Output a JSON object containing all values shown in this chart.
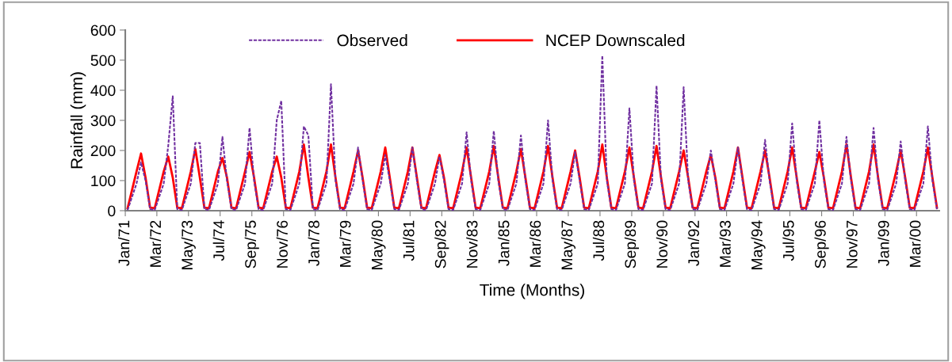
{
  "chart_data": {
    "type": "line",
    "xlabel": "Time (Months)",
    "ylabel": "Rainfall (mm)",
    "xlim": [
      "1971-01",
      "2001-01"
    ],
    "ylim": [
      0,
      600
    ],
    "yticks": [
      0,
      100,
      200,
      300,
      400,
      500,
      600
    ],
    "xticks": [
      {
        "value": "1971-01",
        "label": "Jan/71"
      },
      {
        "value": "1972-03",
        "label": "Mar/72"
      },
      {
        "value": "1973-05",
        "label": "May/73"
      },
      {
        "value": "1974-07",
        "label": "Jul/74"
      },
      {
        "value": "1975-09",
        "label": "Sep/75"
      },
      {
        "value": "1976-11",
        "label": "Nov/76"
      },
      {
        "value": "1978-01",
        "label": "Jan/78"
      },
      {
        "value": "1979-03",
        "label": "Mar/79"
      },
      {
        "value": "1980-05",
        "label": "May/80"
      },
      {
        "value": "1981-07",
        "label": "Jul/81"
      },
      {
        "value": "1982-09",
        "label": "Sep/82"
      },
      {
        "value": "1983-11",
        "label": "Nov/83"
      },
      {
        "value": "1985-01",
        "label": "Jan/85"
      },
      {
        "value": "1986-03",
        "label": "Mar/86"
      },
      {
        "value": "1987-05",
        "label": "May/87"
      },
      {
        "value": "1988-07",
        "label": "Jul/88"
      },
      {
        "value": "1989-09",
        "label": "Sep/89"
      },
      {
        "value": "1990-11",
        "label": "Nov/90"
      },
      {
        "value": "1992-01",
        "label": "Jan/92"
      },
      {
        "value": "1993-03",
        "label": "Mar/93"
      },
      {
        "value": "1994-05",
        "label": "May/94"
      },
      {
        "value": "1995-07",
        "label": "Jul/95"
      },
      {
        "value": "1996-09",
        "label": "Sep/96"
      },
      {
        "value": "1997-11",
        "label": "Nov/97"
      },
      {
        "value": "1999-01",
        "label": "Jan/99"
      },
      {
        "value": "2000-03",
        "label": "Mar/00"
      }
    ],
    "grid": false,
    "legend": "top",
    "marker": "none",
    "series": [
      {
        "name": "Observed",
        "color": "#7030a0",
        "line_style": "dashed",
        "x": [
          "1971-02",
          "1971-06",
          "1971-08",
          "1971-10",
          "1971-12",
          "1972-02",
          "1972-06",
          "1972-08",
          "1972-10",
          "1972-12",
          "1973-02",
          "1973-06",
          "1973-08",
          "1973-10",
          "1973-12",
          "1974-02",
          "1974-06",
          "1974-08",
          "1974-10",
          "1974-12",
          "1975-02",
          "1975-06",
          "1975-08",
          "1975-10",
          "1975-12",
          "1976-02",
          "1976-06",
          "1976-08",
          "1976-10",
          "1976-12",
          "1977-02",
          "1977-06",
          "1977-08",
          "1977-10",
          "1977-12",
          "1978-02",
          "1978-06",
          "1978-08",
          "1978-10",
          "1978-12",
          "1979-02",
          "1979-06",
          "1979-08",
          "1979-10",
          "1979-12",
          "1980-02",
          "1980-06",
          "1980-08",
          "1980-10",
          "1980-12",
          "1981-02",
          "1981-06",
          "1981-08",
          "1981-10",
          "1981-12",
          "1982-02",
          "1982-06",
          "1982-08",
          "1982-10",
          "1982-12",
          "1983-02",
          "1983-06",
          "1983-08",
          "1983-10",
          "1983-12",
          "1984-02",
          "1984-06",
          "1984-08",
          "1984-10",
          "1984-12",
          "1985-02",
          "1985-06",
          "1985-08",
          "1985-10",
          "1985-12",
          "1986-02",
          "1986-06",
          "1986-08",
          "1986-10",
          "1986-12",
          "1987-02",
          "1987-06",
          "1987-08",
          "1987-10",
          "1987-12",
          "1988-02",
          "1988-06",
          "1988-08",
          "1988-10",
          "1988-12",
          "1989-02",
          "1989-06",
          "1989-08",
          "1989-10",
          "1989-12",
          "1990-02",
          "1990-06",
          "1990-08",
          "1990-10",
          "1990-12",
          "1991-02",
          "1991-06",
          "1991-08",
          "1991-10",
          "1991-12",
          "1992-02",
          "1992-06",
          "1992-08",
          "1992-10",
          "1992-12",
          "1993-02",
          "1993-06",
          "1993-08",
          "1993-10",
          "1993-12",
          "1994-02",
          "1994-06",
          "1994-08",
          "1994-10",
          "1994-12",
          "1995-02",
          "1995-06",
          "1995-08",
          "1995-10",
          "1995-12",
          "1996-02",
          "1996-06",
          "1996-08",
          "1996-10",
          "1996-12",
          "1997-02",
          "1997-06",
          "1997-08",
          "1997-10",
          "1997-12",
          "1998-02",
          "1998-06",
          "1998-08",
          "1998-10",
          "1998-12",
          "1999-02",
          "1999-06",
          "1999-08",
          "1999-10",
          "1999-12",
          "2000-02",
          "2000-06",
          "2000-08",
          "2000-10",
          "2000-12"
        ],
        "values": [
          2,
          90,
          160,
          100,
          5,
          2,
          90,
          215,
          380,
          5,
          2,
          90,
          225,
          225,
          5,
          2,
          90,
          245,
          100,
          5,
          2,
          90,
          275,
          100,
          5,
          2,
          90,
          300,
          365,
          5,
          2,
          90,
          280,
          250,
          5,
          2,
          90,
          420,
          100,
          5,
          2,
          90,
          210,
          100,
          5,
          2,
          90,
          185,
          100,
          5,
          2,
          90,
          210,
          100,
          5,
          2,
          90,
          180,
          100,
          5,
          2,
          90,
          260,
          100,
          5,
          2,
          90,
          265,
          100,
          5,
          2,
          90,
          250,
          100,
          5,
          2,
          90,
          300,
          100,
          5,
          2,
          90,
          195,
          100,
          5,
          2,
          90,
          515,
          100,
          5,
          2,
          90,
          340,
          100,
          5,
          2,
          90,
          415,
          100,
          5,
          2,
          90,
          410,
          100,
          5,
          2,
          90,
          200,
          100,
          5,
          2,
          90,
          210,
          100,
          5,
          2,
          90,
          235,
          100,
          5,
          2,
          90,
          290,
          100,
          5,
          2,
          90,
          300,
          100,
          5,
          2,
          90,
          245,
          100,
          5,
          2,
          90,
          275,
          100,
          5,
          2,
          90,
          230,
          100,
          5,
          2,
          90,
          280,
          100,
          5
        ]
      },
      {
        "name": "NCEP Downscaled",
        "color": "#ff0000",
        "line_style": "solid",
        "x": [
          "1971-02",
          "1971-06",
          "1971-08",
          "1971-10",
          "1971-12",
          "1972-02",
          "1972-06",
          "1972-08",
          "1972-10",
          "1972-12",
          "1973-02",
          "1973-06",
          "1973-08",
          "1973-10",
          "1973-12",
          "1974-02",
          "1974-06",
          "1974-08",
          "1974-10",
          "1974-12",
          "1975-02",
          "1975-06",
          "1975-08",
          "1975-10",
          "1975-12",
          "1976-02",
          "1976-06",
          "1976-08",
          "1976-10",
          "1976-12",
          "1977-02",
          "1977-06",
          "1977-08",
          "1977-10",
          "1977-12",
          "1978-02",
          "1978-06",
          "1978-08",
          "1978-10",
          "1978-12",
          "1979-02",
          "1979-06",
          "1979-08",
          "1979-10",
          "1979-12",
          "1980-02",
          "1980-06",
          "1980-08",
          "1980-10",
          "1980-12",
          "1981-02",
          "1981-06",
          "1981-08",
          "1981-10",
          "1981-12",
          "1982-02",
          "1982-06",
          "1982-08",
          "1982-10",
          "1982-12",
          "1983-02",
          "1983-06",
          "1983-08",
          "1983-10",
          "1983-12",
          "1984-02",
          "1984-06",
          "1984-08",
          "1984-10",
          "1984-12",
          "1985-02",
          "1985-06",
          "1985-08",
          "1985-10",
          "1985-12",
          "1986-02",
          "1986-06",
          "1986-08",
          "1986-10",
          "1986-12",
          "1987-02",
          "1987-06",
          "1987-08",
          "1987-10",
          "1987-12",
          "1988-02",
          "1988-06",
          "1988-08",
          "1988-10",
          "1988-12",
          "1989-02",
          "1989-06",
          "1989-08",
          "1989-10",
          "1989-12",
          "1990-02",
          "1990-06",
          "1990-08",
          "1990-10",
          "1990-12",
          "1991-02",
          "1991-06",
          "1991-08",
          "1991-10",
          "1991-12",
          "1992-02",
          "1992-06",
          "1992-08",
          "1992-10",
          "1992-12",
          "1993-02",
          "1993-06",
          "1993-08",
          "1993-10",
          "1993-12",
          "1994-02",
          "1994-06",
          "1994-08",
          "1994-10",
          "1994-12",
          "1995-02",
          "1995-06",
          "1995-08",
          "1995-10",
          "1995-12",
          "1996-02",
          "1996-06",
          "1996-08",
          "1996-10",
          "1996-12",
          "1997-02",
          "1997-06",
          "1997-08",
          "1997-10",
          "1997-12",
          "1998-02",
          "1998-06",
          "1998-08",
          "1998-10",
          "1998-12",
          "1999-02",
          "1999-06",
          "1999-08",
          "1999-10",
          "1999-12",
          "2000-02",
          "2000-06",
          "2000-08",
          "2000-10",
          "2000-12"
        ],
        "values": [
          8,
          130,
          190,
          110,
          10,
          8,
          130,
          180,
          110,
          10,
          8,
          130,
          205,
          110,
          10,
          8,
          130,
          175,
          110,
          10,
          8,
          130,
          195,
          110,
          10,
          8,
          130,
          180,
          110,
          10,
          8,
          130,
          220,
          110,
          10,
          8,
          130,
          220,
          110,
          10,
          8,
          130,
          200,
          110,
          10,
          8,
          130,
          210,
          110,
          10,
          8,
          130,
          210,
          110,
          10,
          8,
          130,
          185,
          110,
          10,
          8,
          130,
          210,
          110,
          10,
          8,
          130,
          215,
          110,
          10,
          8,
          130,
          205,
          110,
          10,
          8,
          130,
          215,
          110,
          10,
          8,
          130,
          200,
          110,
          10,
          8,
          130,
          220,
          110,
          10,
          8,
          130,
          210,
          110,
          10,
          8,
          130,
          215,
          110,
          10,
          8,
          130,
          200,
          110,
          10,
          8,
          130,
          185,
          110,
          10,
          8,
          130,
          210,
          110,
          10,
          8,
          130,
          200,
          110,
          10,
          8,
          130,
          210,
          110,
          10,
          8,
          130,
          195,
          110,
          10,
          8,
          130,
          220,
          110,
          10,
          8,
          130,
          220,
          110,
          10,
          8,
          130,
          200,
          110,
          10,
          8,
          130,
          210,
          110,
          10
        ]
      }
    ]
  }
}
